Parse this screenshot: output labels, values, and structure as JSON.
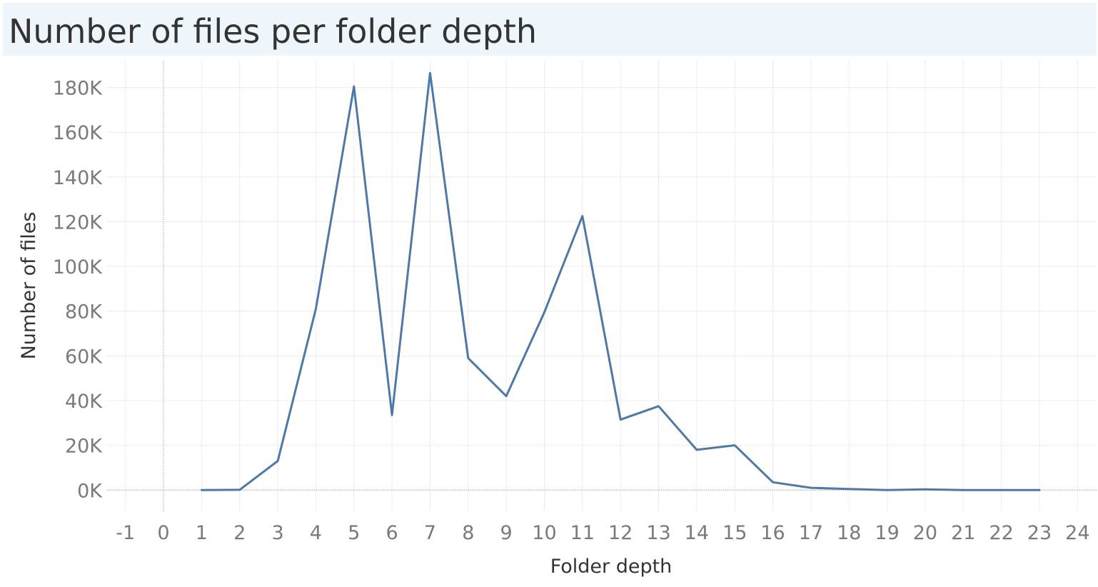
{
  "chart_data": {
    "type": "line",
    "title": "Number of files per folder depth",
    "xlabel": "Folder depth",
    "ylabel": "Number of files",
    "xlim": [
      -1,
      24
    ],
    "ylim": [
      -9500,
      192000
    ],
    "x_ticks": [
      -1,
      0,
      1,
      2,
      3,
      4,
      5,
      6,
      7,
      8,
      9,
      10,
      11,
      12,
      13,
      14,
      15,
      16,
      17,
      18,
      19,
      20,
      21,
      22,
      23,
      24
    ],
    "y_ticks": [
      0,
      20000,
      40000,
      60000,
      80000,
      100000,
      120000,
      140000,
      160000,
      180000
    ],
    "y_tick_labels": [
      "0K",
      "20K",
      "40K",
      "60K",
      "80K",
      "100K",
      "120K",
      "140K",
      "160K",
      "180K"
    ],
    "grid": true,
    "line_color": "#4e79a7",
    "series": [
      {
        "x": [
          1,
          2,
          3,
          4,
          5,
          6,
          7,
          8,
          9,
          10,
          11,
          12,
          13,
          14,
          15,
          16,
          17,
          18,
          19,
          20,
          21,
          22,
          23
        ],
        "values": [
          0,
          100,
          13000,
          81000,
          180500,
          33500,
          186500,
          59000,
          42000,
          79500,
          122500,
          31500,
          37500,
          18000,
          20000,
          3500,
          1000,
          500,
          0,
          300,
          0,
          0,
          0
        ]
      }
    ]
  }
}
